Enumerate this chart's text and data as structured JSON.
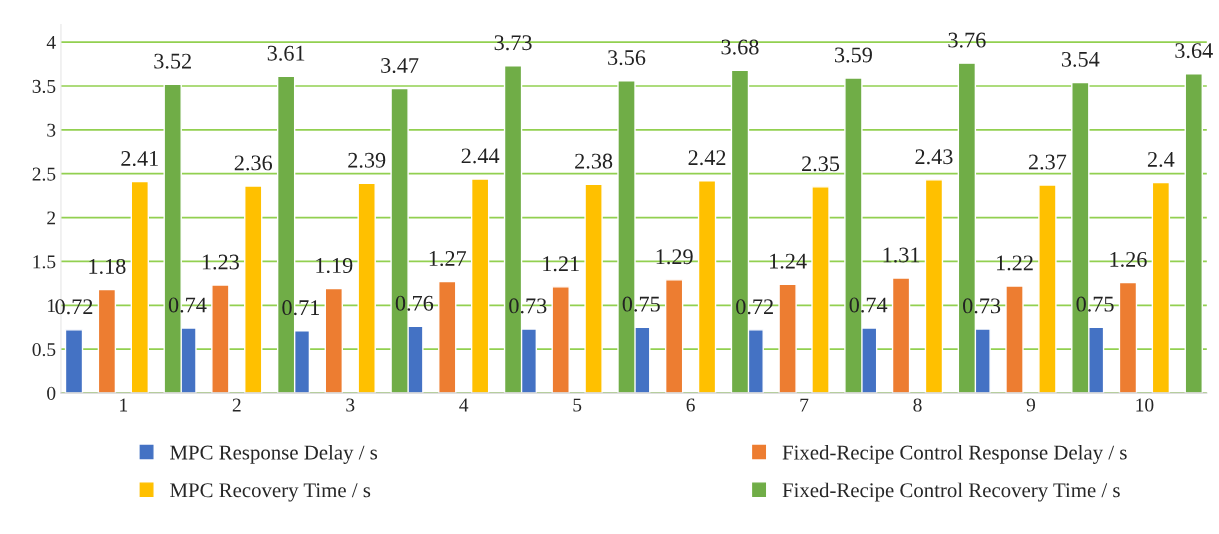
{
  "chart_data": {
    "type": "bar",
    "categories": [
      "1",
      "2",
      "3",
      "4",
      "5",
      "6",
      "7",
      "8",
      "9",
      "10"
    ],
    "series": [
      {
        "name": "MPC Response Delay / s",
        "color": "#4472c4",
        "values": [
          0.72,
          0.74,
          0.71,
          0.76,
          0.73,
          0.75,
          0.72,
          0.74,
          0.73,
          0.75
        ]
      },
      {
        "name": "Fixed-Recipe Control Response Delay / s",
        "color": "#ed7d31",
        "values": [
          1.18,
          1.23,
          1.19,
          1.27,
          1.21,
          1.29,
          1.24,
          1.31,
          1.22,
          1.26
        ]
      },
      {
        "name": "MPC Recovery Time / s",
        "color": "#ffc000",
        "values": [
          2.41,
          2.36,
          2.39,
          2.44,
          2.38,
          2.42,
          2.35,
          2.43,
          2.37,
          2.4
        ]
      },
      {
        "name": "Fixed-Recipe Control Recovery Time / s",
        "color": "#70ad47",
        "values": [
          3.52,
          3.61,
          3.47,
          3.73,
          3.56,
          3.68,
          3.59,
          3.76,
          3.54,
          3.64
        ]
      }
    ],
    "ylim": [
      0,
      4.2
    ],
    "yticks": [
      0,
      0.5,
      1,
      1.5,
      2,
      2.5,
      3,
      3.5,
      4
    ],
    "grid": "y",
    "legend": "bottom",
    "data_labels": true
  }
}
